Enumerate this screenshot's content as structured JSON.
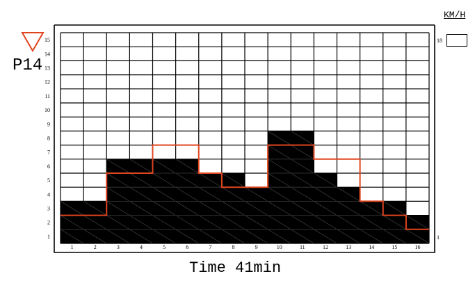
{
  "program": {
    "label": "P14",
    "indicator_icon": "down-triangle-icon",
    "indicator_color": "#e0451f"
  },
  "speed": {
    "unit": "KM/H",
    "level": "18",
    "bottom_marker": "1"
  },
  "time": {
    "text": "Time 41min"
  },
  "profile": {
    "columns": [
      "1",
      "2",
      "3",
      "4",
      "5",
      "6",
      "7",
      "8",
      "9",
      "10",
      "11",
      "12",
      "13",
      "14",
      "15",
      "16"
    ],
    "rows": [
      "1",
      "2",
      "3",
      "4",
      "5",
      "6",
      "7",
      "8",
      "9",
      "10",
      "11",
      "12",
      "13",
      "14",
      "15"
    ],
    "bar_levels": [
      3,
      3,
      6,
      6,
      6,
      6,
      5,
      5,
      4,
      8,
      8,
      5,
      4,
      3,
      3,
      2
    ],
    "line_levels": [
      2,
      2,
      5,
      5,
      7,
      7,
      5,
      4,
      4,
      7,
      7,
      6,
      6,
      3,
      2,
      1
    ],
    "colors": {
      "bar": "#000000",
      "line": "#e0451f",
      "grid": "#000000",
      "hatch": "#3a3a3a"
    }
  }
}
